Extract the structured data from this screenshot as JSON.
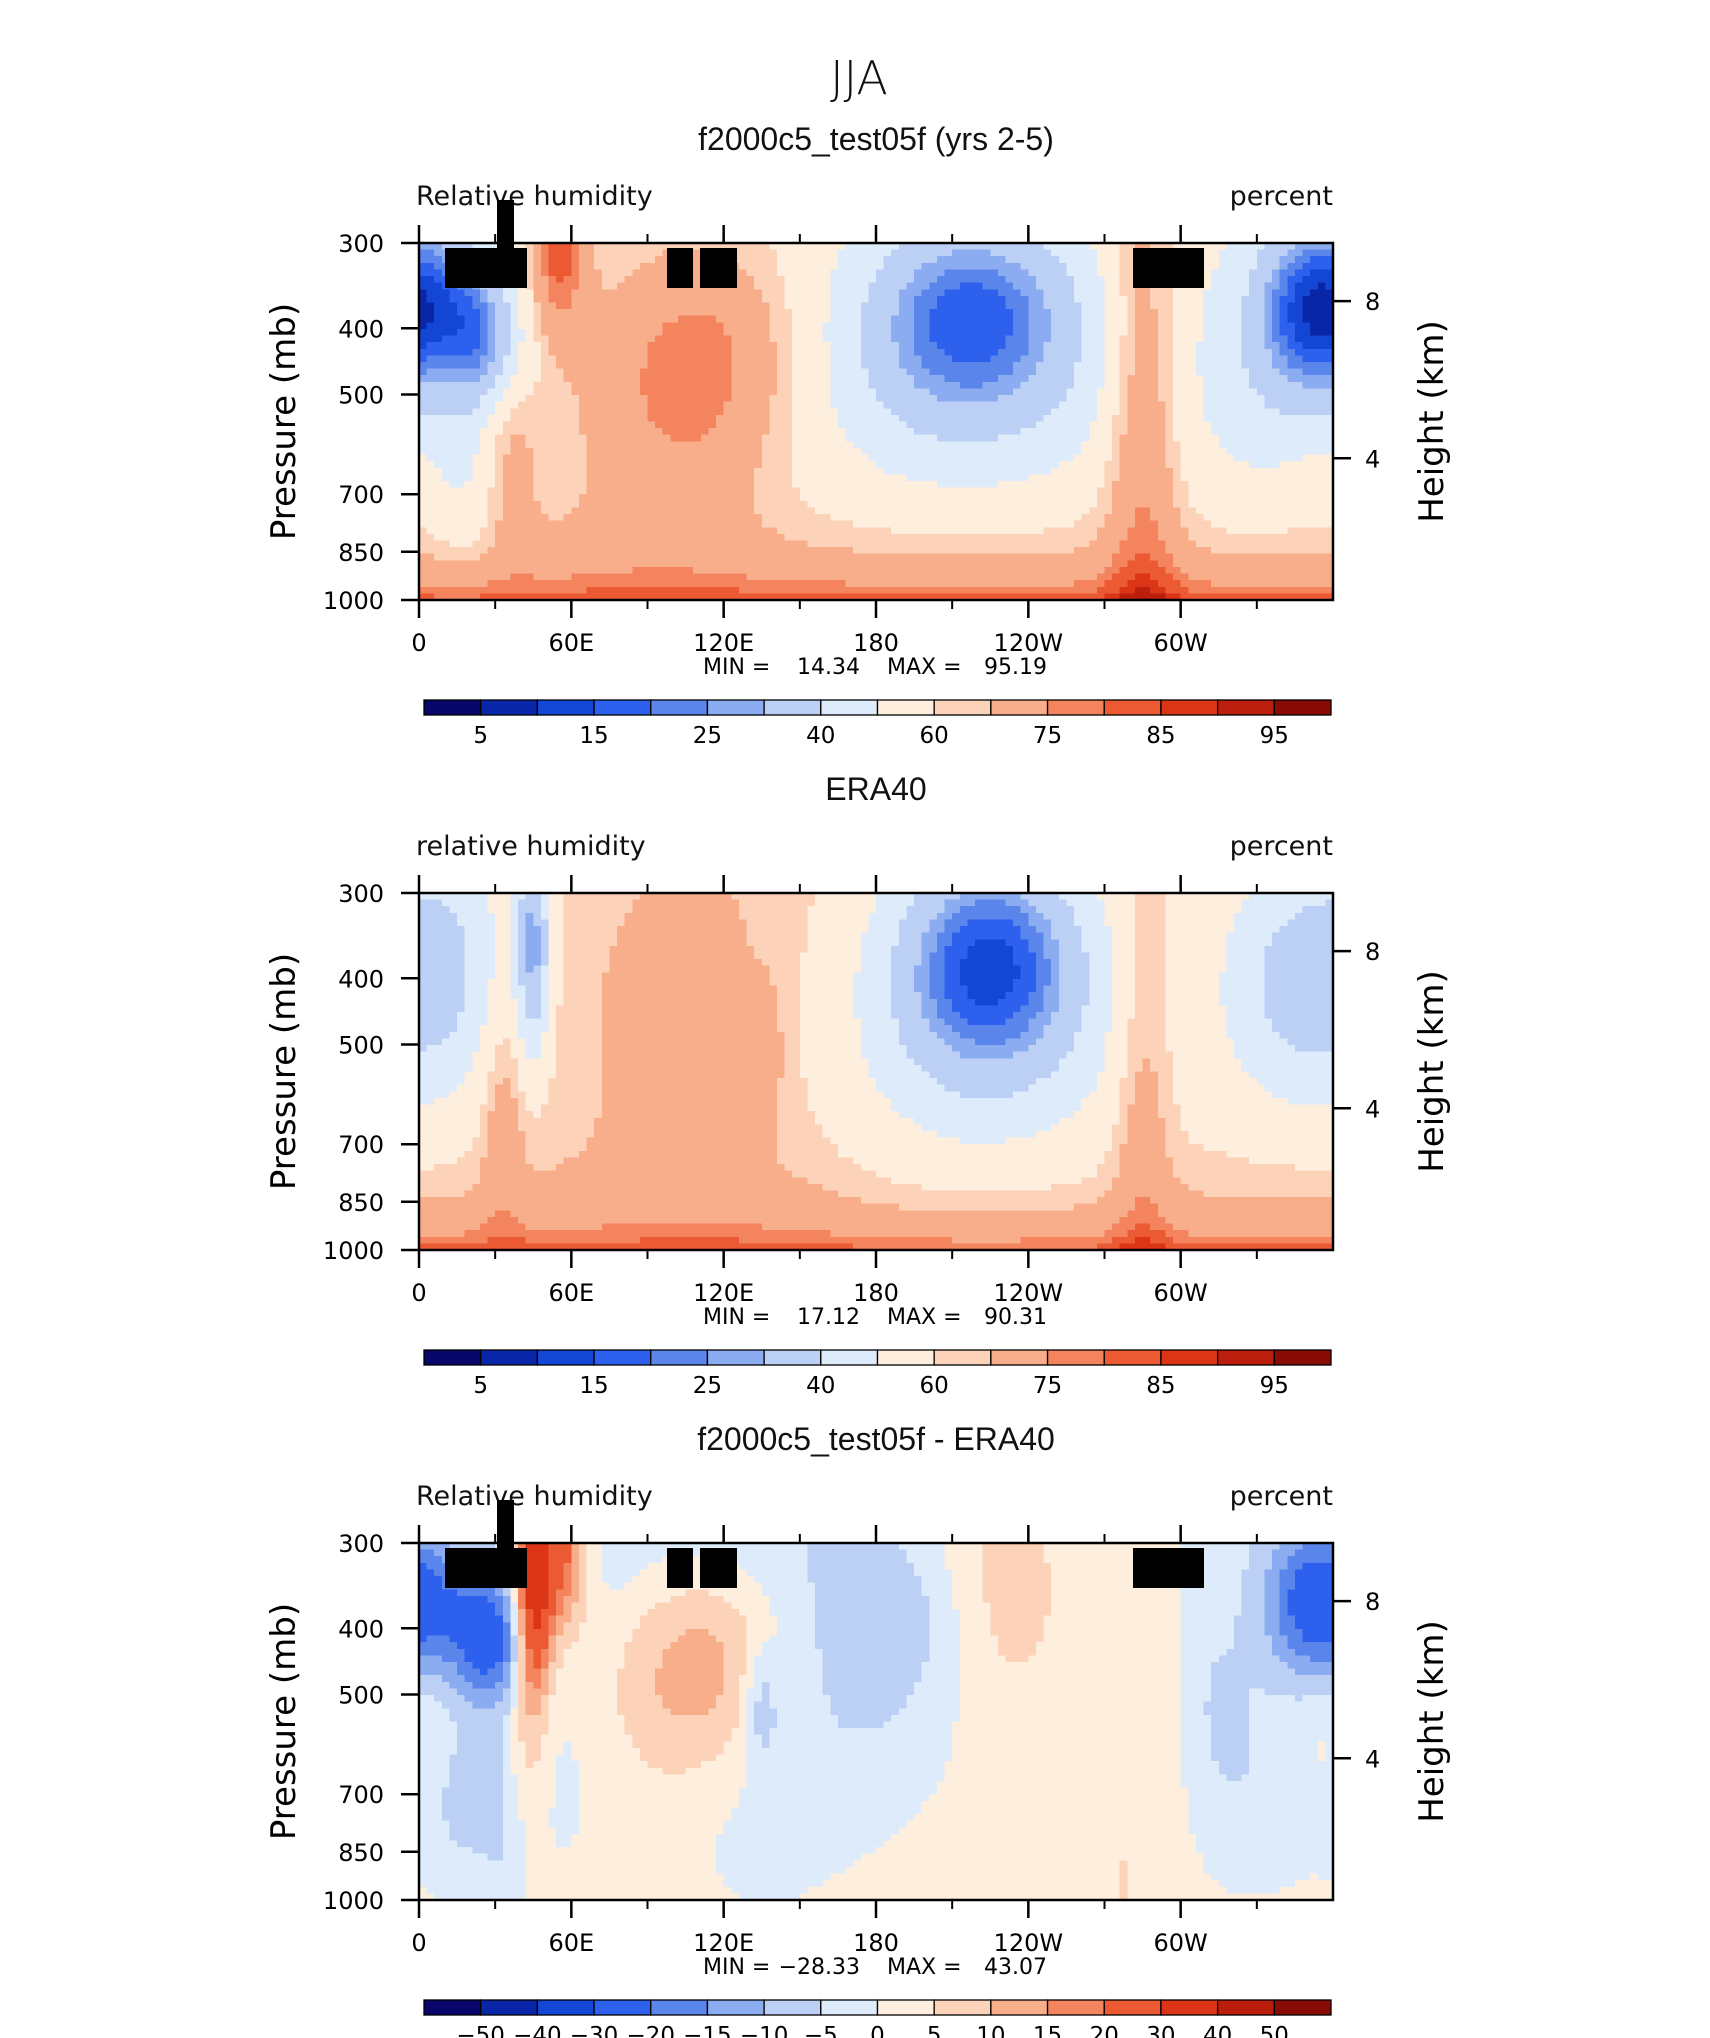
{
  "figure": {
    "title": "JJA"
  },
  "chart_data": [
    {
      "type": "heatmap",
      "title": "f2000c5_test05f (yrs 2-5)",
      "left_label": "Relative humidity",
      "right_label": "percent",
      "ylabel": "Pressure (mb)",
      "y2label": "Height (km)",
      "x_tick_labels": [
        "0",
        "60E",
        "120E",
        "180",
        "120W",
        "60W"
      ],
      "y_tick_labels": [
        "300",
        "400",
        "500",
        "700",
        "850",
        "1000"
      ],
      "y2_tick_labels": [
        "8",
        "4"
      ],
      "stats": {
        "min_label": "MIN =",
        "min": "14.34",
        "max_label": "MAX =",
        "max": "95.19"
      },
      "colorbar_labels": [
        "5",
        "15",
        "25",
        "40",
        "60",
        "75",
        "85",
        "95"
      ],
      "colorbar_colors": [
        "#08066a",
        "#0a26a8",
        "#1446d6",
        "#2e60ee",
        "#5a86ec",
        "#8cacf2",
        "#bcd0f6",
        "#deebfa",
        "#fdeede",
        "#fcd2b8",
        "#f8ae8a",
        "#f3845e",
        "#ec5a33",
        "#dc3417",
        "#bb1e0c",
        "#8a0b05"
      ],
      "colorbar_levels": [
        5,
        10,
        15,
        20,
        25,
        30,
        40,
        50,
        60,
        65,
        75,
        80,
        85,
        90,
        95
      ],
      "field": "model_rh"
    },
    {
      "type": "heatmap",
      "title": "ERA40",
      "left_label": "relative humidity",
      "right_label": "percent",
      "ylabel": "Pressure (mb)",
      "y2label": "Height (km)",
      "x_tick_labels": [
        "0",
        "60E",
        "120E",
        "180",
        "120W",
        "60W"
      ],
      "y_tick_labels": [
        "300",
        "400",
        "500",
        "700",
        "850",
        "1000"
      ],
      "y2_tick_labels": [
        "8",
        "4"
      ],
      "stats": {
        "min_label": "MIN =",
        "min": "17.12",
        "max_label": "MAX =",
        "max": "90.31"
      },
      "colorbar_labels": [
        "5",
        "15",
        "25",
        "40",
        "60",
        "75",
        "85",
        "95"
      ],
      "colorbar_colors": [
        "#08066a",
        "#0a26a8",
        "#1446d6",
        "#2e60ee",
        "#5a86ec",
        "#8cacf2",
        "#bcd0f6",
        "#deebfa",
        "#fdeede",
        "#fcd2b8",
        "#f8ae8a",
        "#f3845e",
        "#ec5a33",
        "#dc3417",
        "#bb1e0c",
        "#8a0b05"
      ],
      "colorbar_levels": [
        5,
        10,
        15,
        20,
        25,
        30,
        40,
        50,
        60,
        65,
        75,
        80,
        85,
        90,
        95
      ],
      "field": "era_rh"
    },
    {
      "type": "heatmap",
      "title": "f2000c5_test05f - ERA40",
      "left_label": "Relative humidity",
      "right_label": "percent",
      "ylabel": "Pressure (mb)",
      "y2label": "Height (km)",
      "x_tick_labels": [
        "0",
        "60E",
        "120E",
        "180",
        "120W",
        "60W"
      ],
      "y_tick_labels": [
        "300",
        "400",
        "500",
        "700",
        "850",
        "1000"
      ],
      "y2_tick_labels": [
        "8",
        "4"
      ],
      "stats": {
        "min_label": "MIN =",
        "min": "−28.33",
        "max_label": "MAX =",
        "max": "43.07"
      },
      "colorbar_labels": [
        "−50",
        "−40",
        "−30",
        "−20",
        "−15",
        "−10",
        "−5",
        "0",
        "5",
        "10",
        "15",
        "20",
        "30",
        "40",
        "50"
      ],
      "colorbar_colors": [
        "#08066a",
        "#0a26a8",
        "#1446d6",
        "#2e60ee",
        "#5a86ec",
        "#8cacf2",
        "#bcd0f6",
        "#deebfa",
        "#fdeede",
        "#fcd2b8",
        "#f8ae8a",
        "#f3845e",
        "#ec5a33",
        "#dc3417",
        "#bb1e0c",
        "#8a0b05"
      ],
      "colorbar_levels": [
        -50,
        -40,
        -30,
        -20,
        -15,
        -10,
        -5,
        0,
        5,
        10,
        15,
        20,
        30,
        40,
        50
      ],
      "field": "diff_rh"
    }
  ]
}
